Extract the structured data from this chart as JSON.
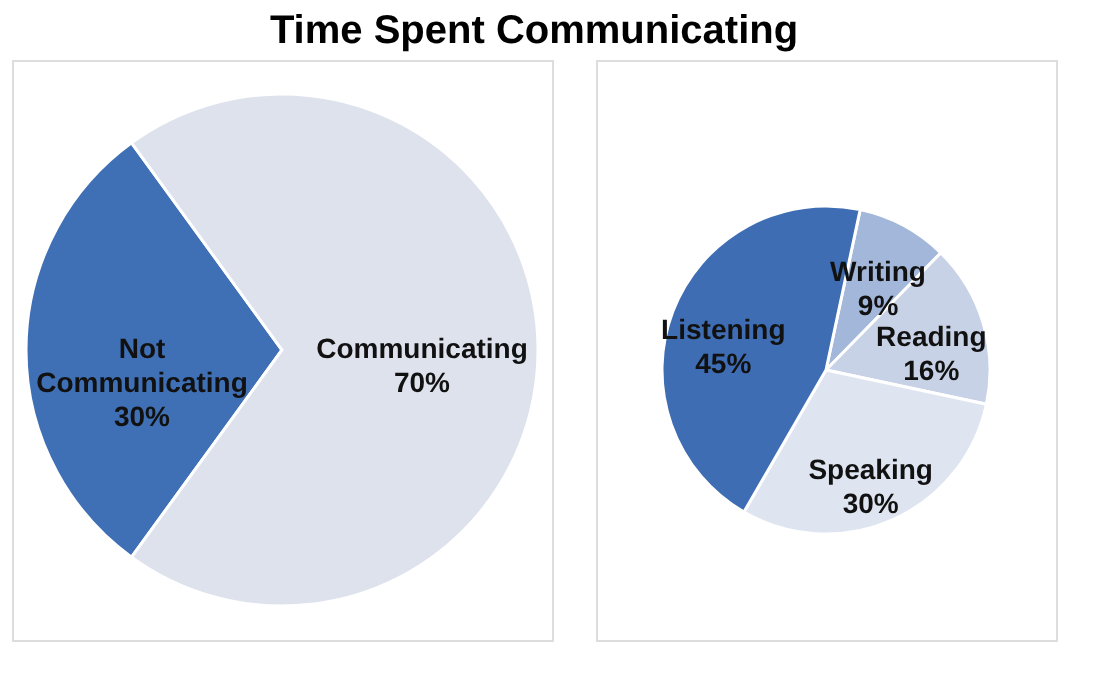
{
  "chart_data": [
    {
      "type": "pie",
      "title": "Time Spent Communicating",
      "categories": [
        "Not Communicating",
        "Communicating"
      ],
      "values": [
        30,
        70
      ],
      "value_labels": [
        "30%",
        "70%"
      ],
      "colors": [
        "#3f6fb5",
        "#dde2ec"
      ]
    },
    {
      "type": "pie",
      "categories": [
        "Writing",
        "Reading",
        "Speaking",
        "Listening"
      ],
      "values": [
        9,
        16,
        30,
        45
      ],
      "value_labels": [
        "9%",
        "16%",
        "30%",
        "45%"
      ],
      "colors": [
        "#a3b7da",
        "#c7d2e6",
        "#dfe5f0",
        "#3e6db3"
      ]
    }
  ]
}
